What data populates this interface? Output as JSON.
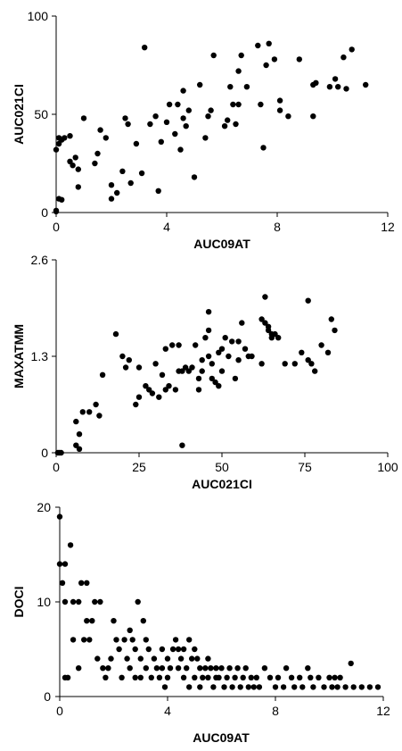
{
  "chart_data": [
    {
      "type": "scatter",
      "xlabel": "AUC09AT",
      "ylabel": "AUC021CI",
      "xlim": [
        0,
        12
      ],
      "ylim": [
        0,
        100
      ],
      "xticks": [
        "0",
        "4",
        "8",
        "12"
      ],
      "yticks": [
        "0",
        "50",
        "100"
      ],
      "grid": false,
      "legend": "none",
      "marker_color": "#000000",
      "points": [
        [
          0.0,
          1
        ],
        [
          0.0,
          0.5
        ],
        [
          0.1,
          7
        ],
        [
          0.2,
          6.5
        ],
        [
          0.0,
          32
        ],
        [
          0.1,
          35
        ],
        [
          0.1,
          38
        ],
        [
          0.3,
          38
        ],
        [
          0.2,
          37
        ],
        [
          0.5,
          26
        ],
        [
          0.5,
          39
        ],
        [
          0.6,
          24
        ],
        [
          0.7,
          28
        ],
        [
          0.8,
          13
        ],
        [
          0.8,
          22
        ],
        [
          1.0,
          48
        ],
        [
          1.4,
          25
        ],
        [
          1.5,
          30
        ],
        [
          1.6,
          42
        ],
        [
          1.8,
          38
        ],
        [
          2.0,
          14
        ],
        [
          2.0,
          7
        ],
        [
          2.2,
          10
        ],
        [
          2.4,
          21
        ],
        [
          2.5,
          48
        ],
        [
          2.6,
          45
        ],
        [
          2.7,
          15
        ],
        [
          2.9,
          35
        ],
        [
          3.1,
          20
        ],
        [
          3.2,
          84
        ],
        [
          3.4,
          45
        ],
        [
          3.6,
          49
        ],
        [
          3.7,
          11
        ],
        [
          3.8,
          36
        ],
        [
          4.0,
          46
        ],
        [
          4.1,
          55
        ],
        [
          4.3,
          40
        ],
        [
          4.4,
          55
        ],
        [
          4.5,
          32
        ],
        [
          4.6,
          62
        ],
        [
          4.6,
          48
        ],
        [
          4.7,
          44
        ],
        [
          4.8,
          52
        ],
        [
          5.0,
          18
        ],
        [
          5.2,
          65
        ],
        [
          5.4,
          38
        ],
        [
          5.5,
          49
        ],
        [
          5.6,
          52
        ],
        [
          5.7,
          80
        ],
        [
          6.1,
          44
        ],
        [
          6.2,
          47
        ],
        [
          6.3,
          64
        ],
        [
          6.4,
          55
        ],
        [
          6.5,
          45
        ],
        [
          6.6,
          72
        ],
        [
          6.6,
          55
        ],
        [
          6.7,
          80
        ],
        [
          6.9,
          64
        ],
        [
          7.3,
          85
        ],
        [
          7.4,
          55
        ],
        [
          7.5,
          33
        ],
        [
          7.6,
          75
        ],
        [
          7.7,
          86
        ],
        [
          7.9,
          78
        ],
        [
          8.1,
          52
        ],
        [
          8.1,
          57
        ],
        [
          8.4,
          49
        ],
        [
          8.8,
          78
        ],
        [
          9.3,
          65
        ],
        [
          9.3,
          49
        ],
        [
          9.4,
          66
        ],
        [
          9.9,
          64
        ],
        [
          10.1,
          68
        ],
        [
          10.2,
          64
        ],
        [
          10.4,
          79
        ],
        [
          10.5,
          63
        ],
        [
          10.7,
          83
        ],
        [
          11.2,
          65
        ]
      ]
    },
    {
      "type": "scatter",
      "xlabel": "AUC021CI",
      "ylabel": "MAXATMM",
      "xlim": [
        0,
        100
      ],
      "ylim": [
        0,
        2.6
      ],
      "xticks": [
        "0",
        "25",
        "50",
        "75",
        "100"
      ],
      "yticks": [
        "0",
        "1.3",
        "2.6"
      ],
      "grid": false,
      "legend": "none",
      "marker_color": "#000000",
      "points": [
        [
          0.5,
          0
        ],
        [
          1,
          0
        ],
        [
          1.5,
          0
        ],
        [
          6,
          0.1
        ],
        [
          7,
          0.05
        ],
        [
          7,
          0.25
        ],
        [
          6,
          0.42
        ],
        [
          8,
          0.55
        ],
        [
          10,
          0.55
        ],
        [
          12,
          0.65
        ],
        [
          13,
          0.5
        ],
        [
          14,
          1.05
        ],
        [
          18,
          1.6
        ],
        [
          20,
          1.3
        ],
        [
          21,
          1.15
        ],
        [
          22,
          1.25
        ],
        [
          24,
          0.65
        ],
        [
          25,
          0.75
        ],
        [
          25,
          1.15
        ],
        [
          27,
          0.9
        ],
        [
          28,
          0.85
        ],
        [
          29,
          0.8
        ],
        [
          30,
          1.2
        ],
        [
          31,
          0.75
        ],
        [
          32,
          1.05
        ],
        [
          33,
          1.4
        ],
        [
          33,
          0.85
        ],
        [
          34,
          0.9
        ],
        [
          35,
          1.45
        ],
        [
          36,
          0.85
        ],
        [
          37,
          1.1
        ],
        [
          37,
          1.45
        ],
        [
          38,
          0.1
        ],
        [
          38,
          1.1
        ],
        [
          39,
          1.15
        ],
        [
          40,
          1.1
        ],
        [
          41,
          1.15
        ],
        [
          42,
          1.45
        ],
        [
          43,
          1.0
        ],
        [
          43,
          0.85
        ],
        [
          44,
          1.25
        ],
        [
          44,
          1.1
        ],
        [
          45,
          1.55
        ],
        [
          46,
          1.9
        ],
        [
          46,
          1.65
        ],
        [
          46,
          1.3
        ],
        [
          47,
          1.0
        ],
        [
          47,
          1.2
        ],
        [
          48,
          0.95
        ],
        [
          49,
          1.35
        ],
        [
          49,
          0.9
        ],
        [
          50,
          1.4
        ],
        [
          50,
          1.1
        ],
        [
          51,
          1.55
        ],
        [
          52,
          1.3
        ],
        [
          53,
          1.5
        ],
        [
          54,
          1.0
        ],
        [
          55,
          1.5
        ],
        [
          55,
          1.25
        ],
        [
          56,
          1.75
        ],
        [
          57,
          1.4
        ],
        [
          59,
          1.3
        ],
        [
          62,
          1.2
        ],
        [
          62,
          1.8
        ],
        [
          63,
          2.1
        ],
        [
          64,
          1.65
        ],
        [
          64,
          1.7
        ],
        [
          65,
          1.6
        ],
        [
          65,
          1.55
        ],
        [
          66,
          1.6
        ],
        [
          67,
          1.55
        ],
        [
          69,
          1.2
        ],
        [
          72,
          1.2
        ],
        [
          74,
          1.35
        ],
        [
          76,
          1.25
        ],
        [
          76,
          2.05
        ],
        [
          77,
          1.2
        ],
        [
          78,
          1.1
        ],
        [
          80,
          1.45
        ],
        [
          82,
          1.35
        ],
        [
          83,
          1.8
        ],
        [
          84,
          1.65
        ],
        [
          63,
          1.75
        ],
        [
          58,
          1.3
        ]
      ]
    },
    {
      "type": "scatter",
      "xlabel": "AUC09AT",
      "ylabel": "DOCI",
      "xlim": [
        0,
        12
      ],
      "ylim": [
        0,
        20
      ],
      "xticks": [
        "0",
        "4",
        "8",
        "12"
      ],
      "yticks": [
        "0",
        "10",
        "20"
      ],
      "grid": false,
      "legend": "none",
      "marker_color": "#000000",
      "points": [
        [
          0.0,
          19
        ],
        [
          0.0,
          14
        ],
        [
          0.1,
          12
        ],
        [
          0.2,
          10
        ],
        [
          0.2,
          14
        ],
        [
          0.2,
          2
        ],
        [
          0.3,
          2
        ],
        [
          0.4,
          16
        ],
        [
          0.5,
          10
        ],
        [
          0.5,
          6
        ],
        [
          0.7,
          10
        ],
        [
          0.7,
          3
        ],
        [
          0.8,
          12
        ],
        [
          0.9,
          6
        ],
        [
          1.0,
          8
        ],
        [
          1.0,
          12
        ],
        [
          1.1,
          6
        ],
        [
          1.2,
          8
        ],
        [
          1.3,
          10
        ],
        [
          1.4,
          4
        ],
        [
          1.5,
          10
        ],
        [
          1.6,
          3
        ],
        [
          1.7,
          2
        ],
        [
          1.8,
          3
        ],
        [
          1.9,
          4
        ],
        [
          2.0,
          8
        ],
        [
          2.1,
          6
        ],
        [
          2.2,
          5
        ],
        [
          2.3,
          2
        ],
        [
          2.4,
          6
        ],
        [
          2.5,
          4
        ],
        [
          2.6,
          7
        ],
        [
          2.6,
          3
        ],
        [
          2.7,
          6
        ],
        [
          2.8,
          5
        ],
        [
          2.8,
          2
        ],
        [
          2.9,
          10
        ],
        [
          3.0,
          4
        ],
        [
          3.0,
          2
        ],
        [
          3.1,
          8
        ],
        [
          3.2,
          6
        ],
        [
          3.2,
          3
        ],
        [
          3.3,
          5
        ],
        [
          3.4,
          2
        ],
        [
          3.5,
          4
        ],
        [
          3.6,
          3
        ],
        [
          3.7,
          2
        ],
        [
          3.8,
          5
        ],
        [
          3.8,
          3
        ],
        [
          3.9,
          1
        ],
        [
          4.0,
          4
        ],
        [
          4.0,
          2
        ],
        [
          4.1,
          3
        ],
        [
          4.2,
          5
        ],
        [
          4.3,
          6
        ],
        [
          4.4,
          3
        ],
        [
          4.4,
          5
        ],
        [
          4.5,
          4
        ],
        [
          4.6,
          2
        ],
        [
          4.6,
          5
        ],
        [
          4.7,
          3
        ],
        [
          4.8,
          6
        ],
        [
          4.8,
          1
        ],
        [
          4.9,
          4
        ],
        [
          5.0,
          5
        ],
        [
          5.0,
          2
        ],
        [
          5.1,
          4
        ],
        [
          5.2,
          3
        ],
        [
          5.2,
          1
        ],
        [
          5.3,
          2
        ],
        [
          5.4,
          3
        ],
        [
          5.5,
          2
        ],
        [
          5.5,
          4
        ],
        [
          5.6,
          3
        ],
        [
          5.7,
          1
        ],
        [
          5.8,
          2
        ],
        [
          5.8,
          3
        ],
        [
          5.9,
          2
        ],
        [
          6.0,
          3
        ],
        [
          6.1,
          1
        ],
        [
          6.2,
          2
        ],
        [
          6.3,
          3
        ],
        [
          6.4,
          1
        ],
        [
          6.5,
          2
        ],
        [
          6.6,
          3
        ],
        [
          6.7,
          1
        ],
        [
          6.8,
          2
        ],
        [
          6.9,
          3
        ],
        [
          7.0,
          1
        ],
        [
          7.1,
          2
        ],
        [
          7.2,
          1
        ],
        [
          7.3,
          2
        ],
        [
          7.4,
          1
        ],
        [
          7.6,
          3
        ],
        [
          7.8,
          2
        ],
        [
          8.0,
          1
        ],
        [
          8.1,
          2
        ],
        [
          8.3,
          1
        ],
        [
          8.4,
          3
        ],
        [
          8.6,
          2
        ],
        [
          8.7,
          1
        ],
        [
          8.9,
          2
        ],
        [
          9.0,
          1
        ],
        [
          9.2,
          3
        ],
        [
          9.3,
          2
        ],
        [
          9.4,
          1
        ],
        [
          9.6,
          2
        ],
        [
          9.8,
          1
        ],
        [
          10.0,
          2
        ],
        [
          10.1,
          1
        ],
        [
          10.2,
          2
        ],
        [
          10.3,
          1
        ],
        [
          10.4,
          2
        ],
        [
          10.6,
          1
        ],
        [
          10.8,
          3.5
        ],
        [
          10.9,
          1
        ],
        [
          11.2,
          1
        ],
        [
          11.5,
          1
        ],
        [
          11.8,
          1
        ]
      ]
    }
  ]
}
